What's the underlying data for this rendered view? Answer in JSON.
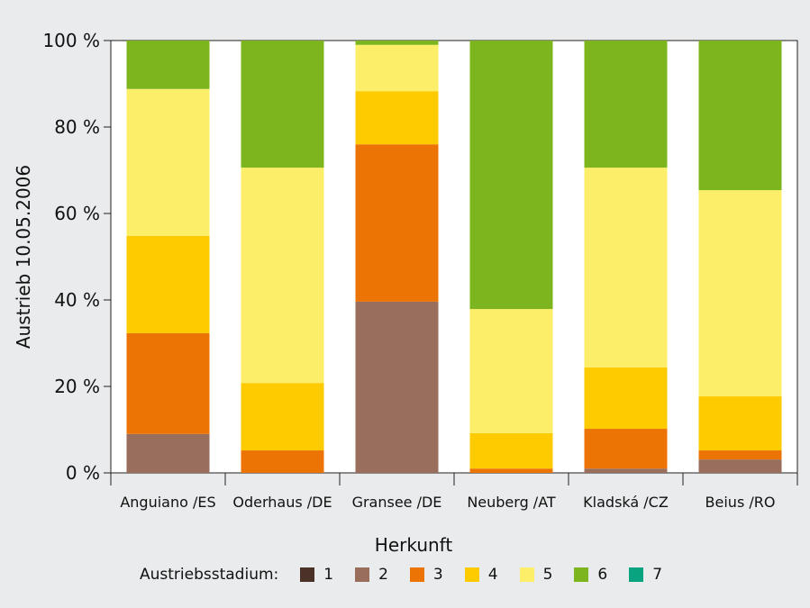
{
  "chart_data": {
    "type": "bar",
    "stacked": true,
    "ylabel": "Austrieb 10.05.2006",
    "xlabel": "Herkunft",
    "ylim": [
      0,
      100
    ],
    "yticks": [
      "0 %",
      "20 %",
      "40 %",
      "60 %",
      "80 %",
      "100 %"
    ],
    "grid": false,
    "legend_position": "bottom",
    "legend_title": "Austriebsstadium:",
    "categories": [
      "Anguiano /ES",
      "Oderhaus /DE",
      "Gransee /DE",
      "Neuberg /AT",
      "Kladská /CZ",
      "Beius /RO"
    ],
    "series": [
      {
        "name": "1",
        "color": "#4b3128",
        "values": [
          0,
          0,
          0,
          0,
          0,
          0
        ]
      },
      {
        "name": "2",
        "color": "#9a6e5d",
        "values": [
          9,
          0,
          39.6,
          0,
          1,
          3.1
        ]
      },
      {
        "name": "3",
        "color": "#ec7405",
        "values": [
          23.3,
          5.2,
          36.4,
          1,
          9.2,
          2.1
        ]
      },
      {
        "name": "4",
        "color": "#fecb00",
        "values": [
          22.5,
          15.6,
          12.3,
          8.2,
          14.2,
          12.5
        ]
      },
      {
        "name": "5",
        "color": "#fdee6a",
        "values": [
          34,
          49.8,
          10.7,
          28.7,
          46.2,
          47.7
        ]
      },
      {
        "name": "6",
        "color": "#7db51f",
        "values": [
          11.2,
          29.4,
          1,
          62.1,
          29.4,
          34.6
        ]
      },
      {
        "name": "7",
        "color": "#0aa37f",
        "values": [
          0,
          0,
          0,
          0,
          0,
          0
        ]
      }
    ]
  }
}
